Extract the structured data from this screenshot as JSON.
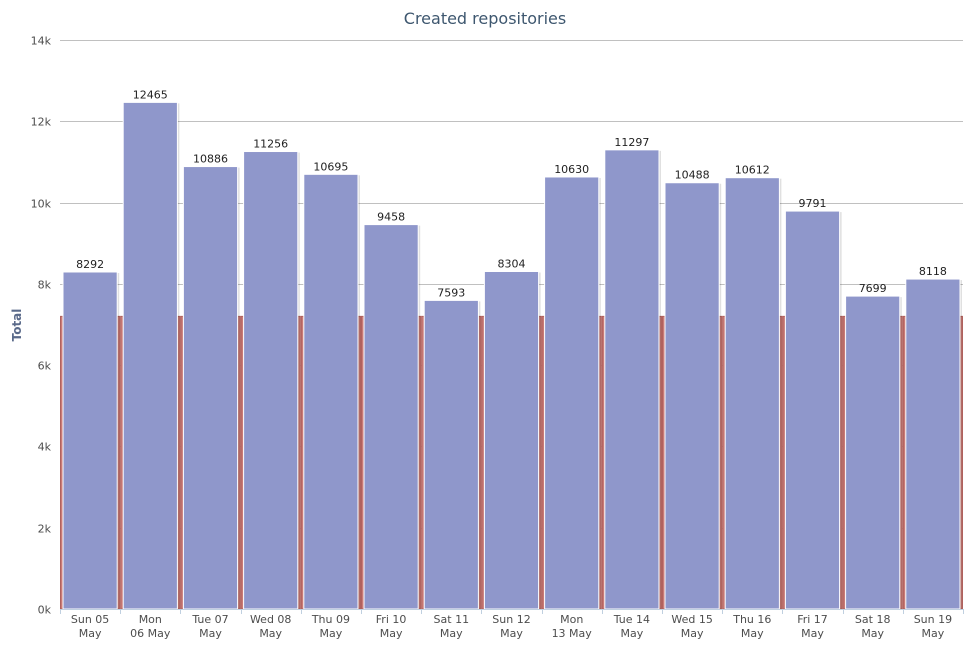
{
  "chart_data": {
    "type": "bar",
    "title": "Created repositories",
    "xlabel": "",
    "ylabel": "Total",
    "ylim": [
      0,
      14000
    ],
    "yticks": [
      {
        "value": 0,
        "label": "0k"
      },
      {
        "value": 2000,
        "label": "2k"
      },
      {
        "value": 4000,
        "label": "4k"
      },
      {
        "value": 6000,
        "label": "6k"
      },
      {
        "value": 8000,
        "label": "8k"
      },
      {
        "value": 10000,
        "label": "10k"
      },
      {
        "value": 12000,
        "label": "12k"
      },
      {
        "value": 14000,
        "label": "14k"
      }
    ],
    "grid": true,
    "categories": [
      [
        "Sun 05",
        "May"
      ],
      [
        "Mon",
        "06 May"
      ],
      [
        "Tue 07",
        "May"
      ],
      [
        "Wed 08",
        "May"
      ],
      [
        "Thu 09",
        "May"
      ],
      [
        "Fri 10",
        "May"
      ],
      [
        "Sat 11",
        "May"
      ],
      [
        "Sun 12",
        "May"
      ],
      [
        "Mon",
        "13 May"
      ],
      [
        "Tue 14",
        "May"
      ],
      [
        "Wed 15",
        "May"
      ],
      [
        "Thu 16",
        "May"
      ],
      [
        "Fri 17",
        "May"
      ],
      [
        "Sat 18",
        "May"
      ],
      [
        "Sun 19",
        "May"
      ]
    ],
    "series": [
      {
        "color": "#c97b77",
        "values": [
          7200,
          7200,
          7200,
          7200,
          7200,
          7200,
          7200,
          7200,
          7200,
          7200,
          7200,
          7200,
          7200,
          7200,
          7200
        ]
      },
      {
        "color": "#8f97cb",
        "values": [
          8292,
          12465,
          10886,
          11256,
          10695,
          9458,
          7593,
          8304,
          10630,
          11297,
          10488,
          10612,
          9791,
          7699,
          8118
        ],
        "data_labels": [
          "8292",
          "12465",
          "10886",
          "11256",
          "10695",
          "9458",
          "7593",
          "8304",
          "10630",
          "11297",
          "10488",
          "10612",
          "9791",
          "7699",
          "8118"
        ]
      }
    ]
  }
}
